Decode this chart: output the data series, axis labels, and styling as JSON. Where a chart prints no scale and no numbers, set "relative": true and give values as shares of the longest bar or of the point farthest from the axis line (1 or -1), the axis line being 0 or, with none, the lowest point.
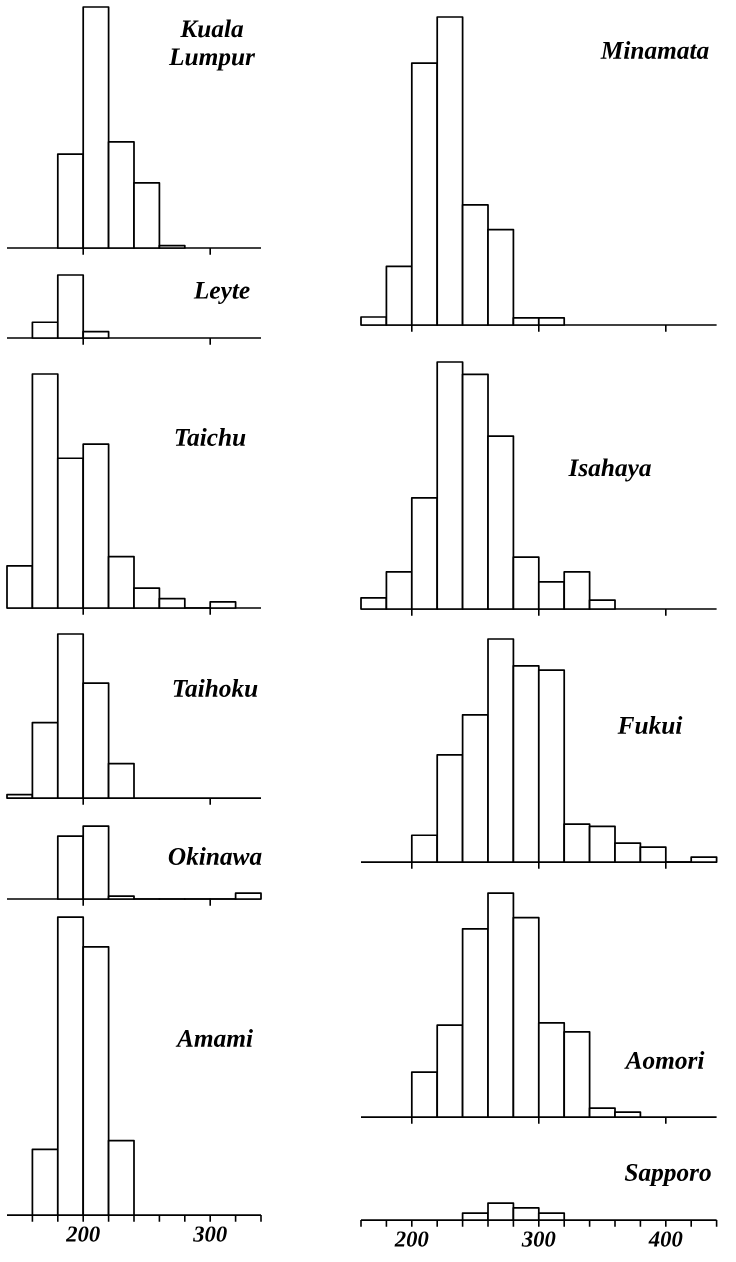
{
  "chart_data": [
    {
      "type": "bar",
      "title": "Kuala Lumpur",
      "color": "#000000",
      "relative": true,
      "x": [
        190,
        210,
        230,
        250,
        270
      ],
      "values": [
        0.39,
        1,
        0.44,
        0.27,
        0.01
      ],
      "xlim": [
        140,
        340
      ],
      "xticks": [
        200,
        300
      ],
      "tick_labels": false
    },
    {
      "type": "bar",
      "title": "Leyte",
      "color": "#000000",
      "relative": true,
      "x": [
        170,
        190,
        210
      ],
      "values": [
        0.25,
        1,
        0.1
      ],
      "xlim": [
        140,
        340
      ],
      "xticks": [
        200,
        300
      ],
      "tick_labels": false
    },
    {
      "type": "bar",
      "title": "Taichu",
      "color": "#000000",
      "relative": true,
      "x": [
        150,
        170,
        190,
        210,
        230,
        250,
        270,
        290,
        310
      ],
      "values": [
        0.18,
        1,
        0.64,
        0.7,
        0.22,
        0.085,
        0.04,
        0,
        0.026
      ],
      "xlim": [
        140,
        340
      ],
      "xticks": [
        200,
        300
      ],
      "tick_labels": false
    },
    {
      "type": "bar",
      "title": "Taihoku",
      "color": "#000000",
      "relative": true,
      "x": [
        150,
        170,
        190,
        210,
        230
      ],
      "values": [
        0.02,
        0.46,
        1,
        0.7,
        0.21
      ],
      "xlim": [
        140,
        340
      ],
      "xticks": [
        200,
        300
      ],
      "tick_labels": false
    },
    {
      "type": "bar",
      "title": "Okinawa",
      "color": "#000000",
      "relative": true,
      "x": [
        190,
        210,
        230,
        250,
        270,
        290,
        310,
        330
      ],
      "values": [
        0.86,
        1,
        0.04,
        0,
        0,
        0,
        0,
        0.08
      ],
      "xlim": [
        140,
        340
      ],
      "xticks": [
        200,
        300
      ],
      "tick_labels": false
    },
    {
      "type": "bar",
      "title": "Amami",
      "color": "#000000",
      "relative": true,
      "x": [
        170,
        190,
        210,
        230
      ],
      "values": [
        0.22,
        1,
        0.9,
        0.25
      ],
      "xlim": [
        140,
        340
      ],
      "xticks": [
        {
          "value": 160,
          "label": null
        },
        {
          "value": 180,
          "label": null
        },
        {
          "value": 200,
          "label": "200"
        },
        {
          "value": 220,
          "label": null
        },
        {
          "value": 240,
          "label": null
        },
        {
          "value": 260,
          "label": null
        },
        {
          "value": 280,
          "label": null
        },
        {
          "value": 300,
          "label": "300"
        },
        {
          "value": 320,
          "label": null
        },
        {
          "value": 340,
          "label": null
        }
      ]
    },
    {
      "type": "bar",
      "title": "Minamata",
      "color": "#000000",
      "relative": true,
      "x": [
        170,
        190,
        210,
        230,
        250,
        270,
        290,
        310
      ],
      "values": [
        0.026,
        0.19,
        0.85,
        1,
        0.39,
        0.31,
        0.023,
        0.023
      ],
      "xlim": [
        160,
        440
      ],
      "xticks": [
        200,
        300,
        400
      ],
      "tick_labels": false
    },
    {
      "type": "bar",
      "title": "Isahaya",
      "color": "#000000",
      "relative": true,
      "x": [
        170,
        190,
        210,
        230,
        250,
        270,
        290,
        310,
        330,
        350
      ],
      "values": [
        0.045,
        0.15,
        0.45,
        1,
        0.95,
        0.7,
        0.21,
        0.11,
        0.15,
        0.036
      ],
      "xlim": [
        160,
        440
      ],
      "xticks": [
        200,
        300,
        400
      ],
      "tick_labels": false
    },
    {
      "type": "bar",
      "title": "Fukui",
      "color": "#000000",
      "relative": true,
      "x": [
        210,
        230,
        250,
        270,
        290,
        310,
        330,
        350,
        370,
        390,
        410,
        430
      ],
      "values": [
        0.12,
        0.48,
        0.66,
        1,
        0.88,
        0.86,
        0.17,
        0.16,
        0.085,
        0.067,
        0,
        0.022
      ],
      "xlim": [
        160,
        440
      ],
      "xticks": [
        200,
        300,
        400
      ],
      "tick_labels": false
    },
    {
      "type": "bar",
      "title": "Aomori",
      "color": "#000000",
      "relative": true,
      "x": [
        210,
        230,
        250,
        270,
        290,
        310,
        330,
        350,
        370
      ],
      "values": [
        0.2,
        0.41,
        0.84,
        1,
        0.89,
        0.42,
        0.38,
        0.04,
        0.022
      ],
      "xlim": [
        160,
        440
      ],
      "xticks": [
        200,
        300,
        400
      ],
      "tick_labels": false
    },
    {
      "type": "bar",
      "title": "Sapporo",
      "color": "#000000",
      "relative": true,
      "x": [
        250,
        270,
        290,
        310
      ],
      "values": [
        0.41,
        1,
        0.71,
        0.41
      ],
      "xlim": [
        160,
        440
      ],
      "xticks": [
        {
          "value": 160,
          "label": null
        },
        {
          "value": 180,
          "label": null
        },
        {
          "value": 200,
          "label": "200"
        },
        {
          "value": 220,
          "label": null
        },
        {
          "value": 240,
          "label": null
        },
        {
          "value": 260,
          "label": null
        },
        {
          "value": 280,
          "label": null
        },
        {
          "value": 300,
          "label": "300"
        },
        {
          "value": 320,
          "label": null
        },
        {
          "value": 340,
          "label": null
        },
        {
          "value": 360,
          "label": null
        },
        {
          "value": 380,
          "label": null
        },
        {
          "value": 400,
          "label": "400"
        },
        {
          "value": 420,
          "label": null
        },
        {
          "value": 440,
          "label": null
        }
      ]
    }
  ]
}
